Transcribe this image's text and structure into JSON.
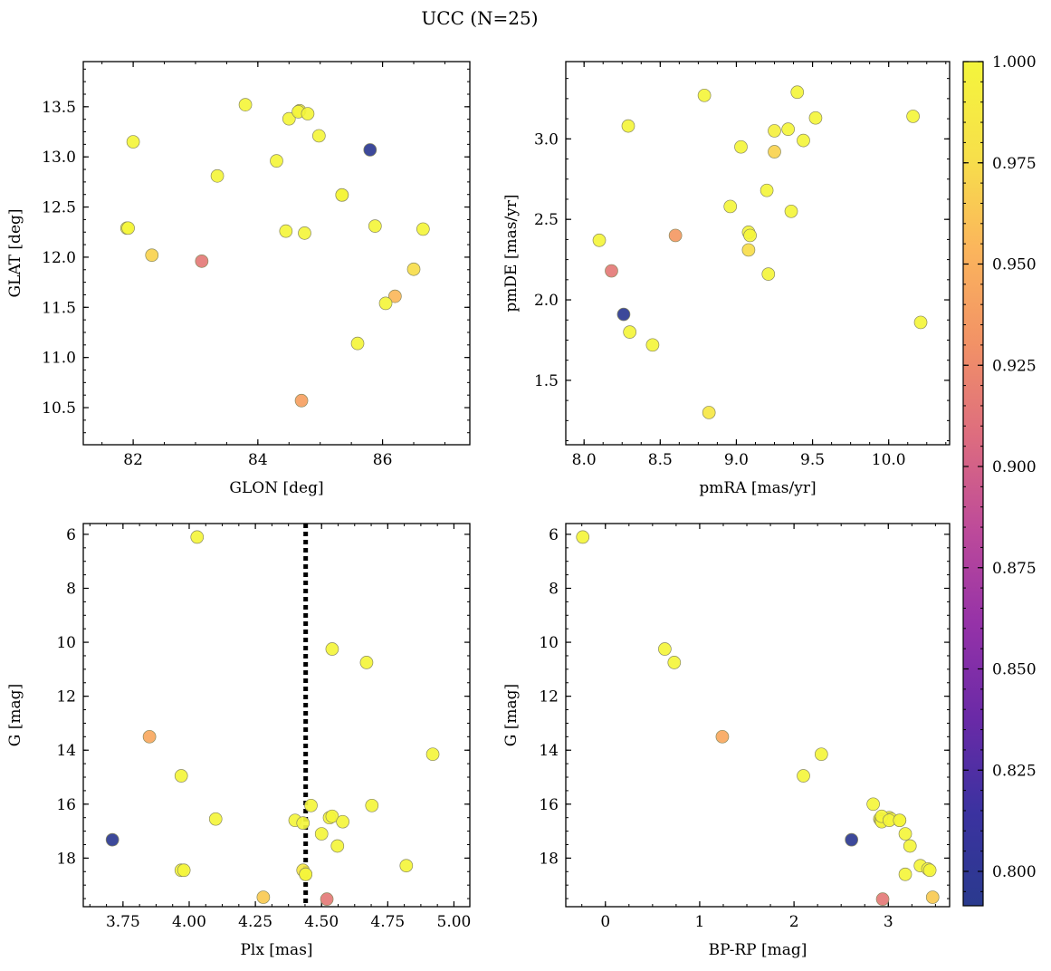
{
  "figure": {
    "title": "UCC (N=25)"
  },
  "colorbar": {
    "range": [
      0.7915,
      1.0
    ],
    "ticks": [
      0.8,
      0.825,
      0.85,
      0.875,
      0.9,
      0.925,
      0.95,
      0.975,
      1.0
    ],
    "tick_labels": [
      "0.800",
      "0.825",
      "0.850",
      "0.875",
      "0.900",
      "0.925",
      "0.950",
      "0.975",
      "1.000"
    ],
    "colormap": "plasma",
    "colors": [
      "#2a3a8e",
      "#3b32a0",
      "#6a2aa7",
      "#9532a8",
      "#bd4a9a",
      "#dd6c7f",
      "#f29266",
      "#fbb55c",
      "#f7e04a",
      "#f4f53c"
    ]
  },
  "chart_data": [
    {
      "type": "scatter",
      "id": "glon-glat",
      "title": "",
      "xlabel": "GLON [deg]",
      "ylabel": "GLAT [deg]",
      "xlim": [
        81.2,
        87.4
      ],
      "ylim": [
        10.13,
        13.95
      ],
      "xticks": [
        82,
        84,
        86
      ],
      "yticks": [
        10.5,
        11.0,
        11.5,
        12.0,
        12.5,
        13.0,
        13.5
      ],
      "xtick_labels": [
        "82",
        "84",
        "86"
      ],
      "ytick_labels": [
        "10.5",
        "11.0",
        "11.5",
        "12.0",
        "12.5",
        "13.0",
        "13.5"
      ],
      "x": [
        81.9,
        82.0,
        82.3,
        83.1,
        83.35,
        83.8,
        84.3,
        84.45,
        84.5,
        84.65,
        84.7,
        84.75,
        84.8,
        84.98,
        85.35,
        85.35,
        85.6,
        85.8,
        85.88,
        86.05,
        86.2,
        86.5,
        86.65,
        81.92,
        84.67
      ],
      "y": [
        12.29,
        13.15,
        12.02,
        11.96,
        12.81,
        13.52,
        12.96,
        12.26,
        13.38,
        13.45,
        10.57,
        12.24,
        13.43,
        13.21,
        12.62,
        12.62,
        11.14,
        13.07,
        12.31,
        11.54,
        11.61,
        11.88,
        12.28,
        12.29,
        13.46
      ],
      "c": [
        1.0,
        1.0,
        0.97,
        0.915,
        1.0,
        1.0,
        1.0,
        1.0,
        1.0,
        1.0,
        0.94,
        1.0,
        1.0,
        1.0,
        1.0,
        0.995,
        1.0,
        0.795,
        1.0,
        1.0,
        0.955,
        0.975,
        1.0,
        1.0,
        0.995
      ]
    },
    {
      "type": "scatter",
      "id": "pmra-pmde",
      "title": "",
      "xlabel": "pmRA [mas/yr]",
      "ylabel": "pmDE [mas/yr]",
      "xlim": [
        7.88,
        10.4
      ],
      "ylim": [
        1.1,
        3.48
      ],
      "xticks": [
        8.0,
        8.5,
        9.0,
        9.5,
        10.0
      ],
      "yticks": [
        1.5,
        2.0,
        2.5,
        3.0
      ],
      "xtick_labels": [
        "8.0",
        "8.5",
        "9.0",
        "9.5",
        "10.0"
      ],
      "ytick_labels": [
        "1.5",
        "2.0",
        "2.5",
        "3.0"
      ],
      "x": [
        8.1,
        8.18,
        8.26,
        8.29,
        8.3,
        8.45,
        8.6,
        8.79,
        8.82,
        8.96,
        9.03,
        9.08,
        9.09,
        9.08,
        9.2,
        9.21,
        9.25,
        9.25,
        9.34,
        9.36,
        9.4,
        9.44,
        9.52,
        10.16,
        10.21
      ],
      "y": [
        2.37,
        2.18,
        1.91,
        3.08,
        1.8,
        1.72,
        2.4,
        3.27,
        1.3,
        2.58,
        2.95,
        2.42,
        2.4,
        2.31,
        2.68,
        2.16,
        3.05,
        2.92,
        3.06,
        2.55,
        3.29,
        2.99,
        3.13,
        3.14,
        1.86
      ],
      "c": [
        1.0,
        0.915,
        0.795,
        1.0,
        1.0,
        1.0,
        0.935,
        1.0,
        0.985,
        1.0,
        1.0,
        1.0,
        1.0,
        0.975,
        1.0,
        1.0,
        0.995,
        0.97,
        1.0,
        1.0,
        1.0,
        1.0,
        1.0,
        1.0,
        1.0
      ]
    },
    {
      "type": "scatter",
      "id": "plx-g",
      "title": "",
      "xlabel": "Plx [mas]",
      "ylabel": "G [mag]",
      "xlim": [
        3.6,
        5.06
      ],
      "ylim": [
        19.8,
        5.6
      ],
      "y_inverted": true,
      "xticks": [
        3.75,
        4.0,
        4.25,
        4.5,
        4.75,
        5.0
      ],
      "yticks": [
        6,
        8,
        10,
        12,
        14,
        16,
        18
      ],
      "xtick_labels": [
        "3.75",
        "4.00",
        "4.25",
        "4.50",
        "4.75",
        "5.00"
      ],
      "ytick_labels": [
        "6",
        "8",
        "10",
        "12",
        "14",
        "16",
        "18"
      ],
      "vline": {
        "x": 4.44,
        "style": "dotted"
      },
      "x": [
        4.03,
        3.71,
        3.85,
        3.97,
        3.97,
        3.98,
        4.1,
        4.28,
        4.4,
        4.43,
        4.43,
        4.44,
        4.46,
        4.5,
        4.53,
        4.54,
        4.54,
        4.56,
        4.58,
        4.67,
        4.69,
        4.82,
        4.92,
        4.52,
        4.44
      ],
      "y": [
        6.1,
        17.32,
        13.5,
        14.95,
        18.45,
        18.45,
        16.55,
        19.45,
        16.6,
        18.45,
        16.7,
        18.6,
        16.05,
        17.1,
        16.5,
        16.45,
        10.25,
        17.55,
        16.65,
        10.75,
        16.05,
        18.28,
        14.15,
        19.52,
        18.6
      ],
      "c": [
        1.0,
        0.795,
        0.945,
        1.0,
        1.0,
        1.0,
        1.0,
        0.965,
        1.0,
        0.985,
        1.0,
        1.0,
        1.0,
        1.0,
        1.0,
        1.0,
        1.0,
        1.0,
        1.0,
        1.0,
        1.0,
        1.0,
        1.0,
        0.915,
        0.985
      ]
    },
    {
      "type": "scatter",
      "id": "bprp-g",
      "title": "",
      "xlabel": "BP-RP [mag]",
      "ylabel": "G [mag]",
      "xlim": [
        -0.42,
        3.65
      ],
      "ylim": [
        19.8,
        5.6
      ],
      "y_inverted": true,
      "xticks": [
        0,
        1,
        2,
        3
      ],
      "yticks": [
        6,
        8,
        10,
        12,
        14,
        16,
        18
      ],
      "xtick_labels": [
        "0",
        "1",
        "2",
        "3"
      ],
      "ytick_labels": [
        "6",
        "8",
        "10",
        "12",
        "14",
        "16",
        "18"
      ],
      "x": [
        -0.24,
        0.63,
        0.73,
        1.24,
        2.1,
        2.29,
        2.61,
        2.84,
        2.91,
        2.92,
        2.93,
        3.01,
        3.03,
        3.12,
        3.18,
        3.23,
        3.18,
        3.34,
        3.42,
        3.44,
        2.94,
        3.47,
        2.93,
        3.01,
        3.12
      ],
      "y": [
        6.1,
        10.25,
        10.75,
        13.5,
        14.95,
        14.15,
        17.32,
        16.0,
        16.55,
        16.6,
        16.65,
        16.5,
        16.55,
        16.6,
        17.1,
        17.55,
        18.6,
        18.28,
        18.4,
        18.45,
        19.52,
        19.45,
        16.45,
        16.6,
        16.6
      ],
      "c": [
        1.0,
        1.0,
        1.0,
        0.945,
        1.0,
        1.0,
        0.795,
        1.0,
        1.0,
        1.0,
        1.0,
        1.0,
        1.0,
        1.0,
        1.0,
        1.0,
        1.0,
        1.0,
        1.0,
        1.0,
        0.915,
        0.965,
        1.0,
        1.0,
        1.0
      ]
    }
  ]
}
